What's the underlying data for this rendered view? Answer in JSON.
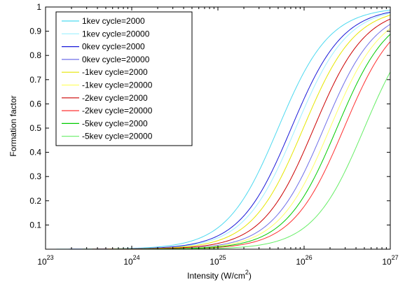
{
  "chart_data": {
    "type": "line",
    "title": "",
    "xlabel": "Intensity (W/cm",
    "xlabel_sup": "2",
    "xlabel_end": ")",
    "ylabel": "Formation factor",
    "x_scale": "log",
    "xlim": [
      1e+23,
      1e+27
    ],
    "ylim": [
      0,
      1
    ],
    "x_ticks": [
      {
        "value": 1e+23,
        "base": "10",
        "exp": "23"
      },
      {
        "value": 1e+24,
        "base": "10",
        "exp": "24"
      },
      {
        "value": 1e+25,
        "base": "10",
        "exp": "25"
      },
      {
        "value": 1e+26,
        "base": "10",
        "exp": "26"
      },
      {
        "value": 1e+27,
        "base": "10",
        "exp": "27"
      }
    ],
    "y_ticks": [
      {
        "value": 0.1,
        "label": "0.1"
      },
      {
        "value": 0.2,
        "label": "0.2"
      },
      {
        "value": 0.3,
        "label": "0.3"
      },
      {
        "value": 0.4,
        "label": "0.4"
      },
      {
        "value": 0.5,
        "label": "0.5"
      },
      {
        "value": 0.6,
        "label": "0.6"
      },
      {
        "value": 0.7,
        "label": "0.7"
      },
      {
        "value": 0.8,
        "label": "0.8"
      },
      {
        "value": 0.9,
        "label": "0.9"
      },
      {
        "value": 1,
        "label": "1"
      }
    ],
    "grid": false,
    "legend_position": "top-left",
    "series": [
      {
        "name": "1kev cycle=2000",
        "color": "#4dd9f0",
        "x50": 5e+25,
        "width": 0.3
      },
      {
        "name": "1kev cycle=20000",
        "color": "#9ef0ff",
        "x50": 8e+25,
        "width": 0.3
      },
      {
        "name": "0kev cycle=2000",
        "color": "#1a1ad9",
        "x50": 7.1e+25,
        "width": 0.3
      },
      {
        "name": "0kev cycle=20000",
        "color": "#6f6fe8",
        "x50": 1.7e+26,
        "width": 0.3
      },
      {
        "name": "-1kev cycle=2000",
        "color": "#e6e600",
        "x50": 9.8e+25,
        "width": 0.3
      },
      {
        "name": "-1kev cycle=20000",
        "color": "#ffff66",
        "x50": 2e+26,
        "width": 0.3
      },
      {
        "name": "-2kev cycle=2000",
        "color": "#cc0000",
        "x50": 1.3e+26,
        "width": 0.3
      },
      {
        "name": "-2kev cycle=20000",
        "color": "#ff3030",
        "x50": 2.9e+26,
        "width": 0.3
      },
      {
        "name": "-5kev cycle=2000",
        "color": "#00cc00",
        "x50": 2.4e+26,
        "width": 0.3
      },
      {
        "name": "-5kev cycle=20000",
        "color": "#66ee66",
        "x50": 5e+26,
        "width": 0.3
      }
    ]
  }
}
